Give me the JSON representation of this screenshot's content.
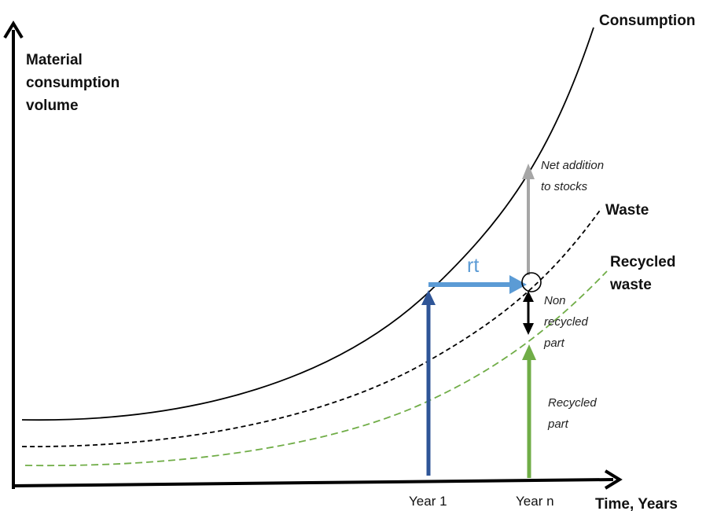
{
  "y_axis_label": [
    "Material",
    "consumption",
    "volume"
  ],
  "x_axis_label": "Time, Years",
  "x_ticks": [
    "Year 1",
    "Year n"
  ],
  "curves": {
    "consumption": "Consumption",
    "waste": "Waste",
    "recycled_waste": [
      "Recycled",
      "waste"
    ]
  },
  "annotations": {
    "rt": "rt",
    "net_addition": [
      "Net addition",
      "to stocks"
    ],
    "non_recycled": [
      "Non",
      "recycled",
      "part"
    ],
    "recycled_part": [
      "Recycled",
      "part"
    ]
  },
  "colors": {
    "consumption_curve": "#000000",
    "waste_curve": "#000000",
    "recycled_curve": "#70ad47",
    "year1_arrow": "#2f5597",
    "rt_arrow": "#5b9bd5",
    "net_addition_arrow": "#a6a6a6",
    "non_recycled_arrow": "#000000",
    "recycled_arrow": "#70ad47"
  }
}
